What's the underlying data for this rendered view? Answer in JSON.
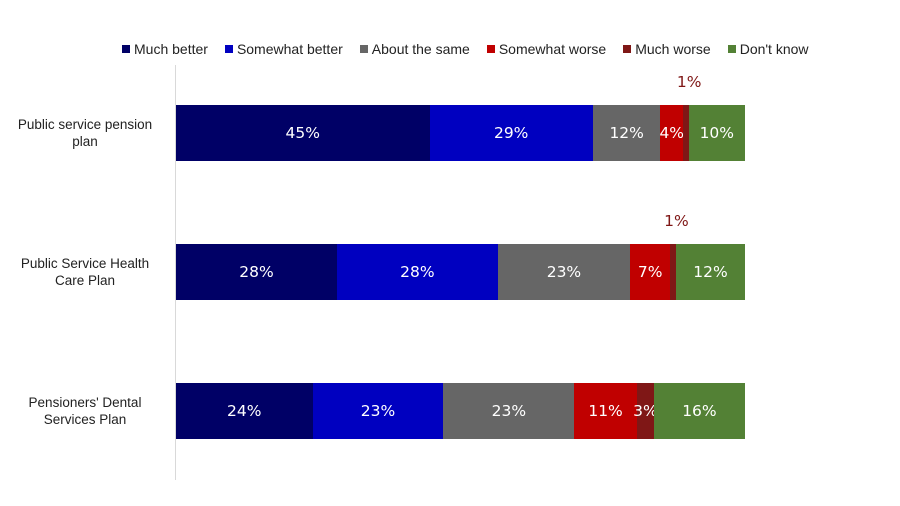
{
  "chart_data": {
    "type": "bar",
    "orientation": "horizontal",
    "stacked": true,
    "title": "",
    "xlabel": "",
    "ylabel": "",
    "xlim": [
      0,
      100
    ],
    "grid": false,
    "legend_position": "top",
    "categories": [
      "Public service pension plan",
      "Public Service Health Care Plan",
      "Pensioners' Dental Services Plan"
    ],
    "series": [
      {
        "name": "Much better",
        "color": "#000066",
        "values": [
          45,
          28,
          24
        ]
      },
      {
        "name": "Somewhat better",
        "color": "#0000c0",
        "values": [
          29,
          28,
          23
        ]
      },
      {
        "name": "About the same",
        "color": "#666666",
        "values": [
          12,
          23,
          23
        ]
      },
      {
        "name": "Somewhat worse",
        "color": "#c00000",
        "values": [
          4,
          7,
          11
        ]
      },
      {
        "name": "Much worse",
        "color": "#7f1716",
        "values": [
          1,
          1,
          3
        ]
      },
      {
        "name": "Don't know",
        "color": "#538135",
        "values": [
          10,
          12,
          16
        ]
      }
    ],
    "labels": [
      [
        "45%",
        "29%",
        "12%",
        "4%",
        "1%",
        "10%"
      ],
      [
        "28%",
        "28%",
        "23%",
        "7%",
        "1%",
        "12%"
      ],
      [
        "24%",
        "23%",
        "23%",
        "11%",
        "3%",
        "16%"
      ]
    ]
  }
}
